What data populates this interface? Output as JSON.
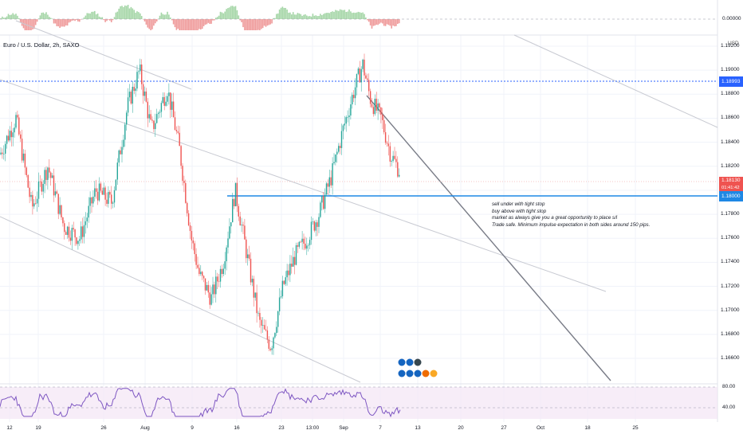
{
  "header": {
    "symbol": "Euro / U.S. Dollar, 2h, SAXO",
    "currency": "USD"
  },
  "colors": {
    "up": "#26a69a",
    "down": "#ef5350",
    "blue_line": "#1e88e5",
    "dotted_line": "#2962ff",
    "trend_line": "#b2b5be",
    "strong_trend": "#787b86",
    "rsi": "#7e57c2",
    "rsi_bg": "#f3e5f5"
  },
  "top_indicator": {
    "zero_label": "0.00000"
  },
  "price_axis": {
    "ticks": [
      "1.19200",
      "1.19000",
      "1.18800",
      "1.18600",
      "1.18400",
      "1.18200",
      "1.18000",
      "1.17800",
      "1.17600",
      "1.17400",
      "1.17200",
      "1.17000",
      "1.16800",
      "1.16600"
    ]
  },
  "badges": {
    "dotted_level": "1.18993",
    "current_price": "1.18130",
    "countdown": "01:41:42",
    "blue_level": "1.18000"
  },
  "time_axis": {
    "ticks": [
      "12",
      "19",
      "26",
      "Aug",
      "9",
      "16",
      "23",
      "13:00",
      "Sep",
      "7",
      "13",
      "20",
      "27",
      "Oct",
      "18",
      "25"
    ]
  },
  "rsi_axis": {
    "ticks": [
      "80.00",
      "40.00"
    ]
  },
  "annotation": {
    "lines": [
      "sell under with tight stop",
      "buy above with tight stop",
      "market as always give you a great opportunity to place s/l",
      "Trade safe. Minimum impulse expectation in both sides around 150 pips."
    ]
  },
  "chart_data": {
    "type": "candlestick",
    "series_name": "Euro / U.S. Dollar, 2h, SAXO",
    "ylim": [
      1.1645,
      1.1925
    ],
    "levels": {
      "dotted": 1.18993,
      "horizontal": 1.18,
      "current": 1.1813
    },
    "price_path": [
      [
        0,
        1.183
      ],
      [
        20,
        1.186
      ],
      [
        40,
        1.1785
      ],
      [
        60,
        1.182
      ],
      [
        80,
        1.177
      ],
      [
        100,
        1.176
      ],
      [
        120,
        1.18
      ],
      [
        140,
        1.179
      ],
      [
        160,
        1.187
      ],
      [
        175,
        1.19
      ],
      [
        190,
        1.185
      ],
      [
        210,
        1.1885
      ],
      [
        225,
        1.1835
      ],
      [
        240,
        1.176
      ],
      [
        250,
        1.173
      ],
      [
        265,
        1.171
      ],
      [
        280,
        1.174
      ],
      [
        295,
        1.18
      ],
      [
        310,
        1.1745
      ],
      [
        325,
        1.169
      ],
      [
        340,
        1.167
      ],
      [
        355,
        1.172
      ],
      [
        370,
        1.1745
      ],
      [
        385,
        1.176
      ],
      [
        400,
        1.178
      ],
      [
        415,
        1.181
      ],
      [
        430,
        1.185
      ],
      [
        445,
        1.1885
      ],
      [
        455,
        1.1905
      ],
      [
        465,
        1.1875
      ],
      [
        478,
        1.186
      ],
      [
        490,
        1.183
      ],
      [
        502,
        1.1815
      ]
    ]
  }
}
